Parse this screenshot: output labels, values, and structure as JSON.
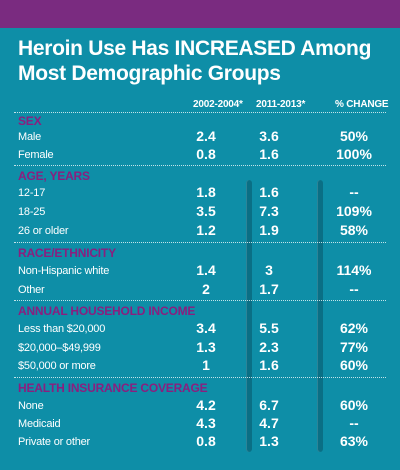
{
  "title": "Heroin Use Has INCREASED Among Most Demographic Groups",
  "columns": [
    "2002-2004*",
    "2011-2013*",
    "% CHANGE"
  ],
  "sections": [
    {
      "heading": "SEX",
      "rows": [
        {
          "label": "Male",
          "v1": "2.4",
          "v2": "3.6",
          "change": "50%"
        },
        {
          "label": "Female",
          "v1": "0.8",
          "v2": "1.6",
          "change": "100%"
        }
      ]
    },
    {
      "heading": "AGE, YEARS",
      "rows": [
        {
          "label": "12-17",
          "v1": "1.8",
          "v2": "1.6",
          "change": "--"
        },
        {
          "label": "18-25",
          "v1": "3.5",
          "v2": "7.3",
          "change": "109%"
        },
        {
          "label": "26 or older",
          "v1": "1.2",
          "v2": "1.9",
          "change": "58%"
        }
      ]
    },
    {
      "heading": "RACE/ETHNICITY",
      "rows": [
        {
          "label": "Non-Hispanic white",
          "v1": "1.4",
          "v2": "3",
          "change": "114%"
        },
        {
          "label": "Other",
          "v1": "2",
          "v2": "1.7",
          "change": "--"
        }
      ]
    },
    {
      "heading": "ANNUAL HOUSEHOLD INCOME",
      "rows": [
        {
          "label": "Less than $20,000",
          "v1": "3.4",
          "v2": "5.5",
          "change": "62%"
        },
        {
          "label": "$20,000–$49,999",
          "v1": "1.3",
          "v2": "2.3",
          "change": "77%"
        },
        {
          "label": "$50,000 or more",
          "v1": "1",
          "v2": "1.6",
          "change": "60%"
        }
      ]
    },
    {
      "heading": "HEALTH INSURANCE COVERAGE",
      "rows": [
        {
          "label": "None",
          "v1": "4.2",
          "v2": "6.7",
          "change": "60%"
        },
        {
          "label": "Medicaid",
          "v1": "4.3",
          "v2": "4.7",
          "change": "--"
        },
        {
          "label": "Private or other",
          "v1": "0.8",
          "v2": "1.3",
          "change": "63%"
        }
      ]
    }
  ],
  "colors": {
    "background": "#0e8ea7",
    "accent_purple": "#7a2b80",
    "section_heading": "#8a1f7f"
  }
}
